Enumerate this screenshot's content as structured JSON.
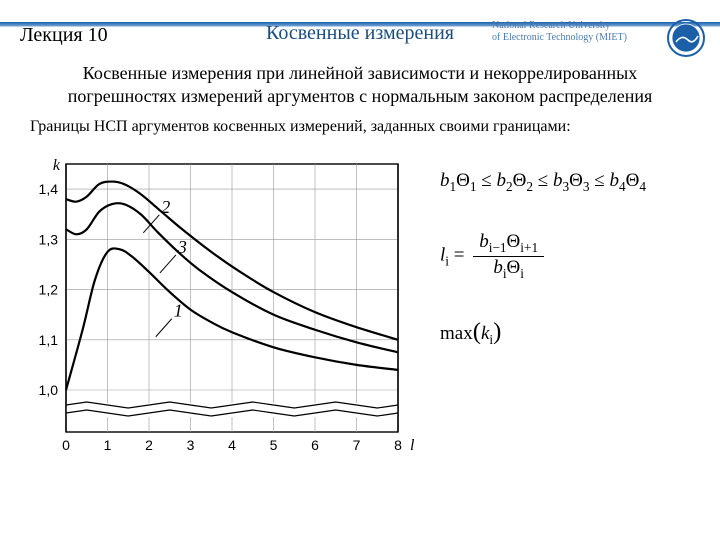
{
  "header": {
    "lecture": "Лекция 10",
    "title": "Косвенные измерения",
    "univ_line1": "National Research University",
    "univ_line2": "of Electronic Technology (MIET)"
  },
  "subtitle": "Косвенные измерения при линейной зависимости и некоррелированных погрешностях измерений аргументов с нормальным законом распределения",
  "caption": "Границы НСП аргументов косвенных измерений, заданных своими границами:",
  "chart": {
    "type": "line",
    "background_color": "#ffffff",
    "grid_color": "#999999",
    "axis_color": "#000000",
    "line_color": "#000000",
    "line_width": 2.2,
    "ylabel": "k",
    "xlabel": "l",
    "xlim": [
      0,
      8
    ],
    "ylim": [
      1.0,
      1.45
    ],
    "xticks": [
      0,
      1,
      2,
      3,
      4,
      5,
      6,
      7,
      8
    ],
    "xtick_labels": [
      "0",
      "1",
      "2",
      "3",
      "4",
      "5",
      "6",
      "7",
      "8"
    ],
    "yticks": [
      1.0,
      1.1,
      1.2,
      1.3,
      1.4
    ],
    "ytick_labels": [
      "1,0",
      "1,1",
      "1,2",
      "1,3",
      "1,4"
    ],
    "wavy_gap_y": 0.95,
    "curve_labels": [
      {
        "text": "1",
        "x": 2.5,
        "y": 1.118
      },
      {
        "text": "2",
        "x": 2.2,
        "y": 1.325
      },
      {
        "text": "3",
        "x": 2.6,
        "y": 1.245
      }
    ],
    "curve_label_fontsize": 18,
    "axis_label_fontsize": 16,
    "tick_fontsize": 14,
    "series": [
      {
        "name": "1",
        "points": [
          [
            0,
            1.0
          ],
          [
            0.4,
            1.12
          ],
          [
            0.7,
            1.22
          ],
          [
            1.0,
            1.275
          ],
          [
            1.3,
            1.28
          ],
          [
            1.6,
            1.265
          ],
          [
            2.0,
            1.235
          ],
          [
            2.5,
            1.195
          ],
          [
            3.0,
            1.16
          ],
          [
            3.5,
            1.135
          ],
          [
            4.0,
            1.115
          ],
          [
            5.0,
            1.085
          ],
          [
            6.0,
            1.065
          ],
          [
            7.0,
            1.05
          ],
          [
            8.0,
            1.04
          ]
        ]
      },
      {
        "name": "3",
        "points": [
          [
            0,
            1.32
          ],
          [
            0.25,
            1.31
          ],
          [
            0.5,
            1.32
          ],
          [
            0.8,
            1.355
          ],
          [
            1.1,
            1.37
          ],
          [
            1.4,
            1.37
          ],
          [
            1.8,
            1.35
          ],
          [
            2.2,
            1.315
          ],
          [
            2.7,
            1.275
          ],
          [
            3.2,
            1.24
          ],
          [
            4.0,
            1.195
          ],
          [
            5.0,
            1.15
          ],
          [
            6.0,
            1.12
          ],
          [
            7.0,
            1.095
          ],
          [
            8.0,
            1.075
          ]
        ]
      },
      {
        "name": "2",
        "points": [
          [
            0,
            1.38
          ],
          [
            0.25,
            1.375
          ],
          [
            0.5,
            1.385
          ],
          [
            0.8,
            1.41
          ],
          [
            1.1,
            1.415
          ],
          [
            1.4,
            1.41
          ],
          [
            1.8,
            1.39
          ],
          [
            2.3,
            1.355
          ],
          [
            2.8,
            1.32
          ],
          [
            3.5,
            1.275
          ],
          [
            4.2,
            1.235
          ],
          [
            5.0,
            1.195
          ],
          [
            6.0,
            1.155
          ],
          [
            7.0,
            1.125
          ],
          [
            8.0,
            1.1
          ]
        ]
      }
    ]
  },
  "formulas": {
    "inequality": {
      "terms": [
        "b₁Θ₁",
        "b₂Θ₂",
        "b₃Θ₃",
        "b₄Θ₄"
      ]
    },
    "fraction": {
      "lhs": "l",
      "lhs_sub": "i",
      "num_b": "b",
      "num_b_sub": "i−1",
      "num_t": "Θ",
      "num_t_sub": "i+1",
      "den_b": "b",
      "den_b_sub": "i",
      "den_t": "Θ",
      "den_t_sub": "i"
    },
    "max": {
      "fn": "max",
      "arg": "k",
      "arg_sub": "i"
    }
  },
  "colors": {
    "header_band": "#1a5fa8",
    "title_color": "#1a4d80",
    "univ_color": "#4a7ab0",
    "logo_outer": "#1a5fa8",
    "logo_inner": "#ffffff"
  }
}
